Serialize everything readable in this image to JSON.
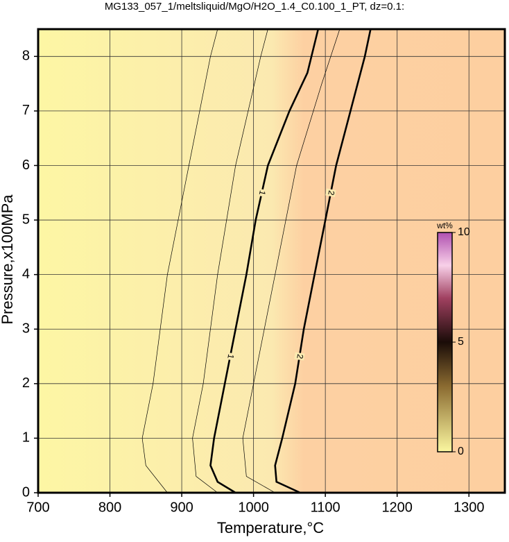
{
  "chart_data": {
    "type": "contour",
    "title": "MG133_057_1/meltsliquid/MgO/H2O_1.4_C0.100_1_PT, dz=0.1:",
    "xlabel": "Temperature,°C",
    "ylabel": "Pressure,x100MPa",
    "xlim": [
      700,
      1350
    ],
    "xticks": [
      700,
      800,
      900,
      1000,
      1100,
      1200,
      1300
    ],
    "ylim": [
      0,
      8.5
    ],
    "yticks": [
      0,
      1,
      2,
      3,
      4,
      5,
      6,
      7,
      8
    ],
    "grid": true,
    "bold_levels": [
      1,
      2
    ],
    "contours": [
      {
        "level": 1,
        "x": [
          975,
          950,
          940,
          945,
          960,
          975,
          990,
          1003,
          1020,
          1050,
          1075,
          1090
        ],
        "y": [
          0,
          0.2,
          0.5,
          1,
          2,
          3,
          4,
          5,
          6,
          7,
          7.7,
          8.5
        ]
      },
      {
        "level": 2,
        "x": [
          1065,
          1032,
          1030,
          1040,
          1058,
          1070,
          1085,
          1100,
          1115,
          1135,
          1155,
          1163
        ],
        "y": [
          0,
          0.2,
          0.5,
          1,
          2,
          3,
          4,
          5,
          6,
          7,
          8,
          8.5
        ]
      },
      {
        "level": 0.5,
        "x": [
          880,
          850,
          845,
          860,
          880,
          910,
          940,
          950
        ],
        "y": [
          0,
          0.5,
          1,
          2,
          4,
          6,
          8,
          8.5
        ]
      },
      {
        "level": 0.8,
        "x": [
          950,
          920,
          915,
          930,
          950,
          975,
          1010,
          1020
        ],
        "y": [
          0,
          0.3,
          1,
          2,
          4,
          6,
          8,
          8.5
        ]
      },
      {
        "level": 1.5,
        "x": [
          1030,
          990,
          985,
          1000,
          1030,
          1060,
          1095,
          1120
        ],
        "y": [
          0,
          0.3,
          1,
          2,
          4,
          6,
          7.5,
          8.5
        ]
      }
    ],
    "colorbar": {
      "label": "wt%",
      "lim": [
        0,
        10
      ],
      "ticks": [
        0,
        5,
        10
      ]
    }
  }
}
